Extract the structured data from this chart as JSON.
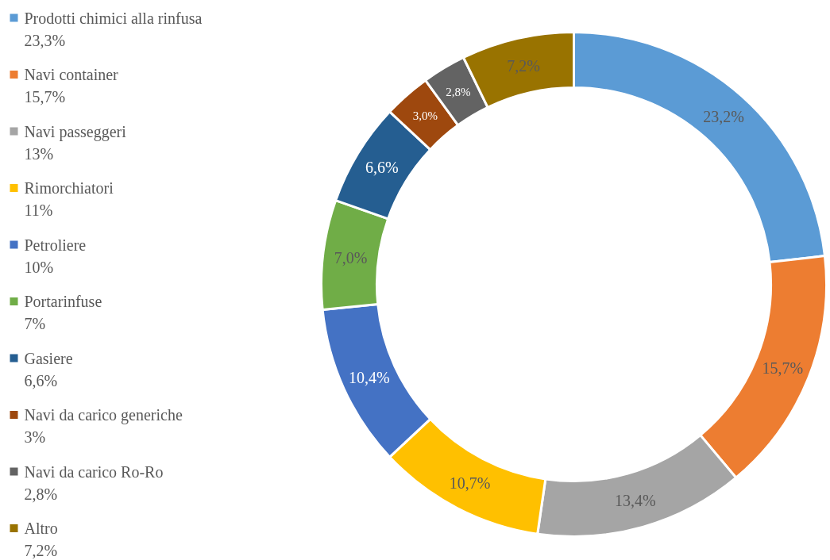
{
  "chart_data": {
    "type": "donut",
    "categories": [
      "Prodotti chimici alla rinfusa\n23,3%",
      "Navi container\n15,7%",
      "Navi passeggeri\n13%",
      "Rimorchiatori\n11%",
      "Petroliere\n10%",
      "Portarinfuse\n7%",
      "Gasiere\n6,6%",
      "Navi da carico generiche\n3%",
      "Navi da carico Ro-Ro\n2,8%",
      "Altro\n7,2%"
    ],
    "values": [
      23.2,
      15.7,
      13.4,
      10.7,
      10.4,
      7.0,
      6.6,
      3.0,
      2.8,
      7.2
    ],
    "value_labels": [
      "23,2%",
      "15,7%",
      "13,4%",
      "10,7%",
      "10,4%",
      "7,0%",
      "6,6%",
      "3,0%",
      "2,8%",
      "7,2%"
    ],
    "colors": [
      "#5b9bd5",
      "#ed7d31",
      "#a5a5a5",
      "#ffc000",
      "#4472c4",
      "#70ad47",
      "#255e91",
      "#9e480e",
      "#636363",
      "#997300"
    ],
    "legend": "left"
  }
}
